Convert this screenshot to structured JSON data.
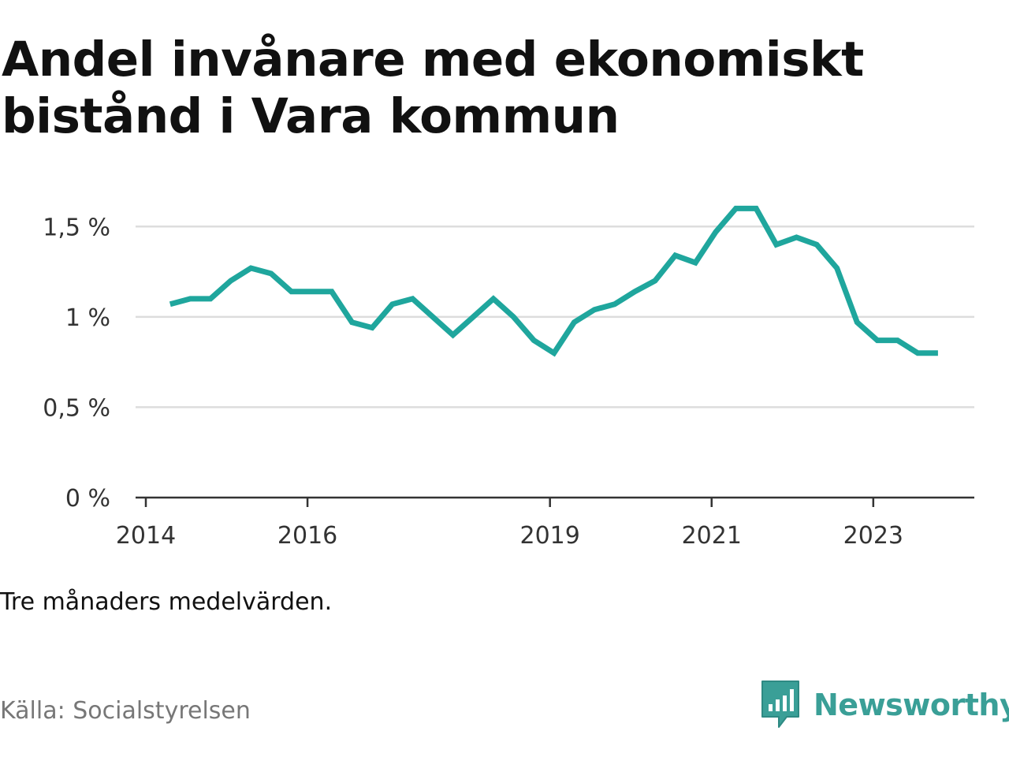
{
  "title": "Andel invånare med ekonomiskt bistånd i Vara kommun",
  "note": "Tre månaders medelvärden.",
  "source": "Källa: Socialstyrelsen",
  "brand": {
    "name": "Newsworthy",
    "icon": "newsworthy-bar-chart-icon",
    "color": "#3a9f97"
  },
  "colors": {
    "line": "#1fa69d",
    "grid": "#dddddd",
    "axis": "#333333"
  },
  "chart_data": {
    "type": "line",
    "title": "Andel invånare med ekonomiskt bistånd i Vara kommun",
    "xlabel": "",
    "ylabel": "",
    "xlim": [
      2014.0,
      2024.25
    ],
    "ylim": [
      0,
      1.75
    ],
    "x_ticks": [
      {
        "value": 2014.0,
        "label": "2014"
      },
      {
        "value": 2016.0,
        "label": "2016"
      },
      {
        "value": 2019.0,
        "label": "2019"
      },
      {
        "value": 2021.0,
        "label": "2021"
      },
      {
        "value": 2023.0,
        "label": "2023"
      }
    ],
    "y_ticks": [
      {
        "value": 0,
        "label": "0 %"
      },
      {
        "value": 0.5,
        "label": "0,5 %"
      },
      {
        "value": 1.0,
        "label": "1 %"
      },
      {
        "value": 1.5,
        "label": "1,5 %"
      }
    ],
    "grid": true,
    "series": [
      {
        "x": [
          2014.3,
          2014.55,
          2014.8,
          2015.05,
          2015.3,
          2015.55,
          2015.8,
          2016.05,
          2016.3,
          2016.55,
          2016.8,
          2017.05,
          2017.3,
          2017.55,
          2017.8,
          2018.05,
          2018.3,
          2018.55,
          2018.8,
          2019.05,
          2019.3,
          2019.55,
          2019.8,
          2020.05,
          2020.3,
          2020.55,
          2020.8,
          2021.05,
          2021.3,
          2021.55,
          2021.8,
          2022.05,
          2022.3,
          2022.55,
          2022.8,
          2023.05,
          2023.3,
          2023.55,
          2023.8
        ],
        "values": [
          1.07,
          1.1,
          1.1,
          1.2,
          1.27,
          1.24,
          1.14,
          1.14,
          1.14,
          0.97,
          0.94,
          1.07,
          1.1,
          1.0,
          0.9,
          1.0,
          1.1,
          1.0,
          0.87,
          0.8,
          0.97,
          1.04,
          1.07,
          1.14,
          1.2,
          1.34,
          1.3,
          1.47,
          1.6,
          1.6,
          1.4,
          1.44,
          1.4,
          1.27,
          0.97,
          0.87,
          0.87,
          0.8,
          0.8
        ]
      }
    ]
  }
}
